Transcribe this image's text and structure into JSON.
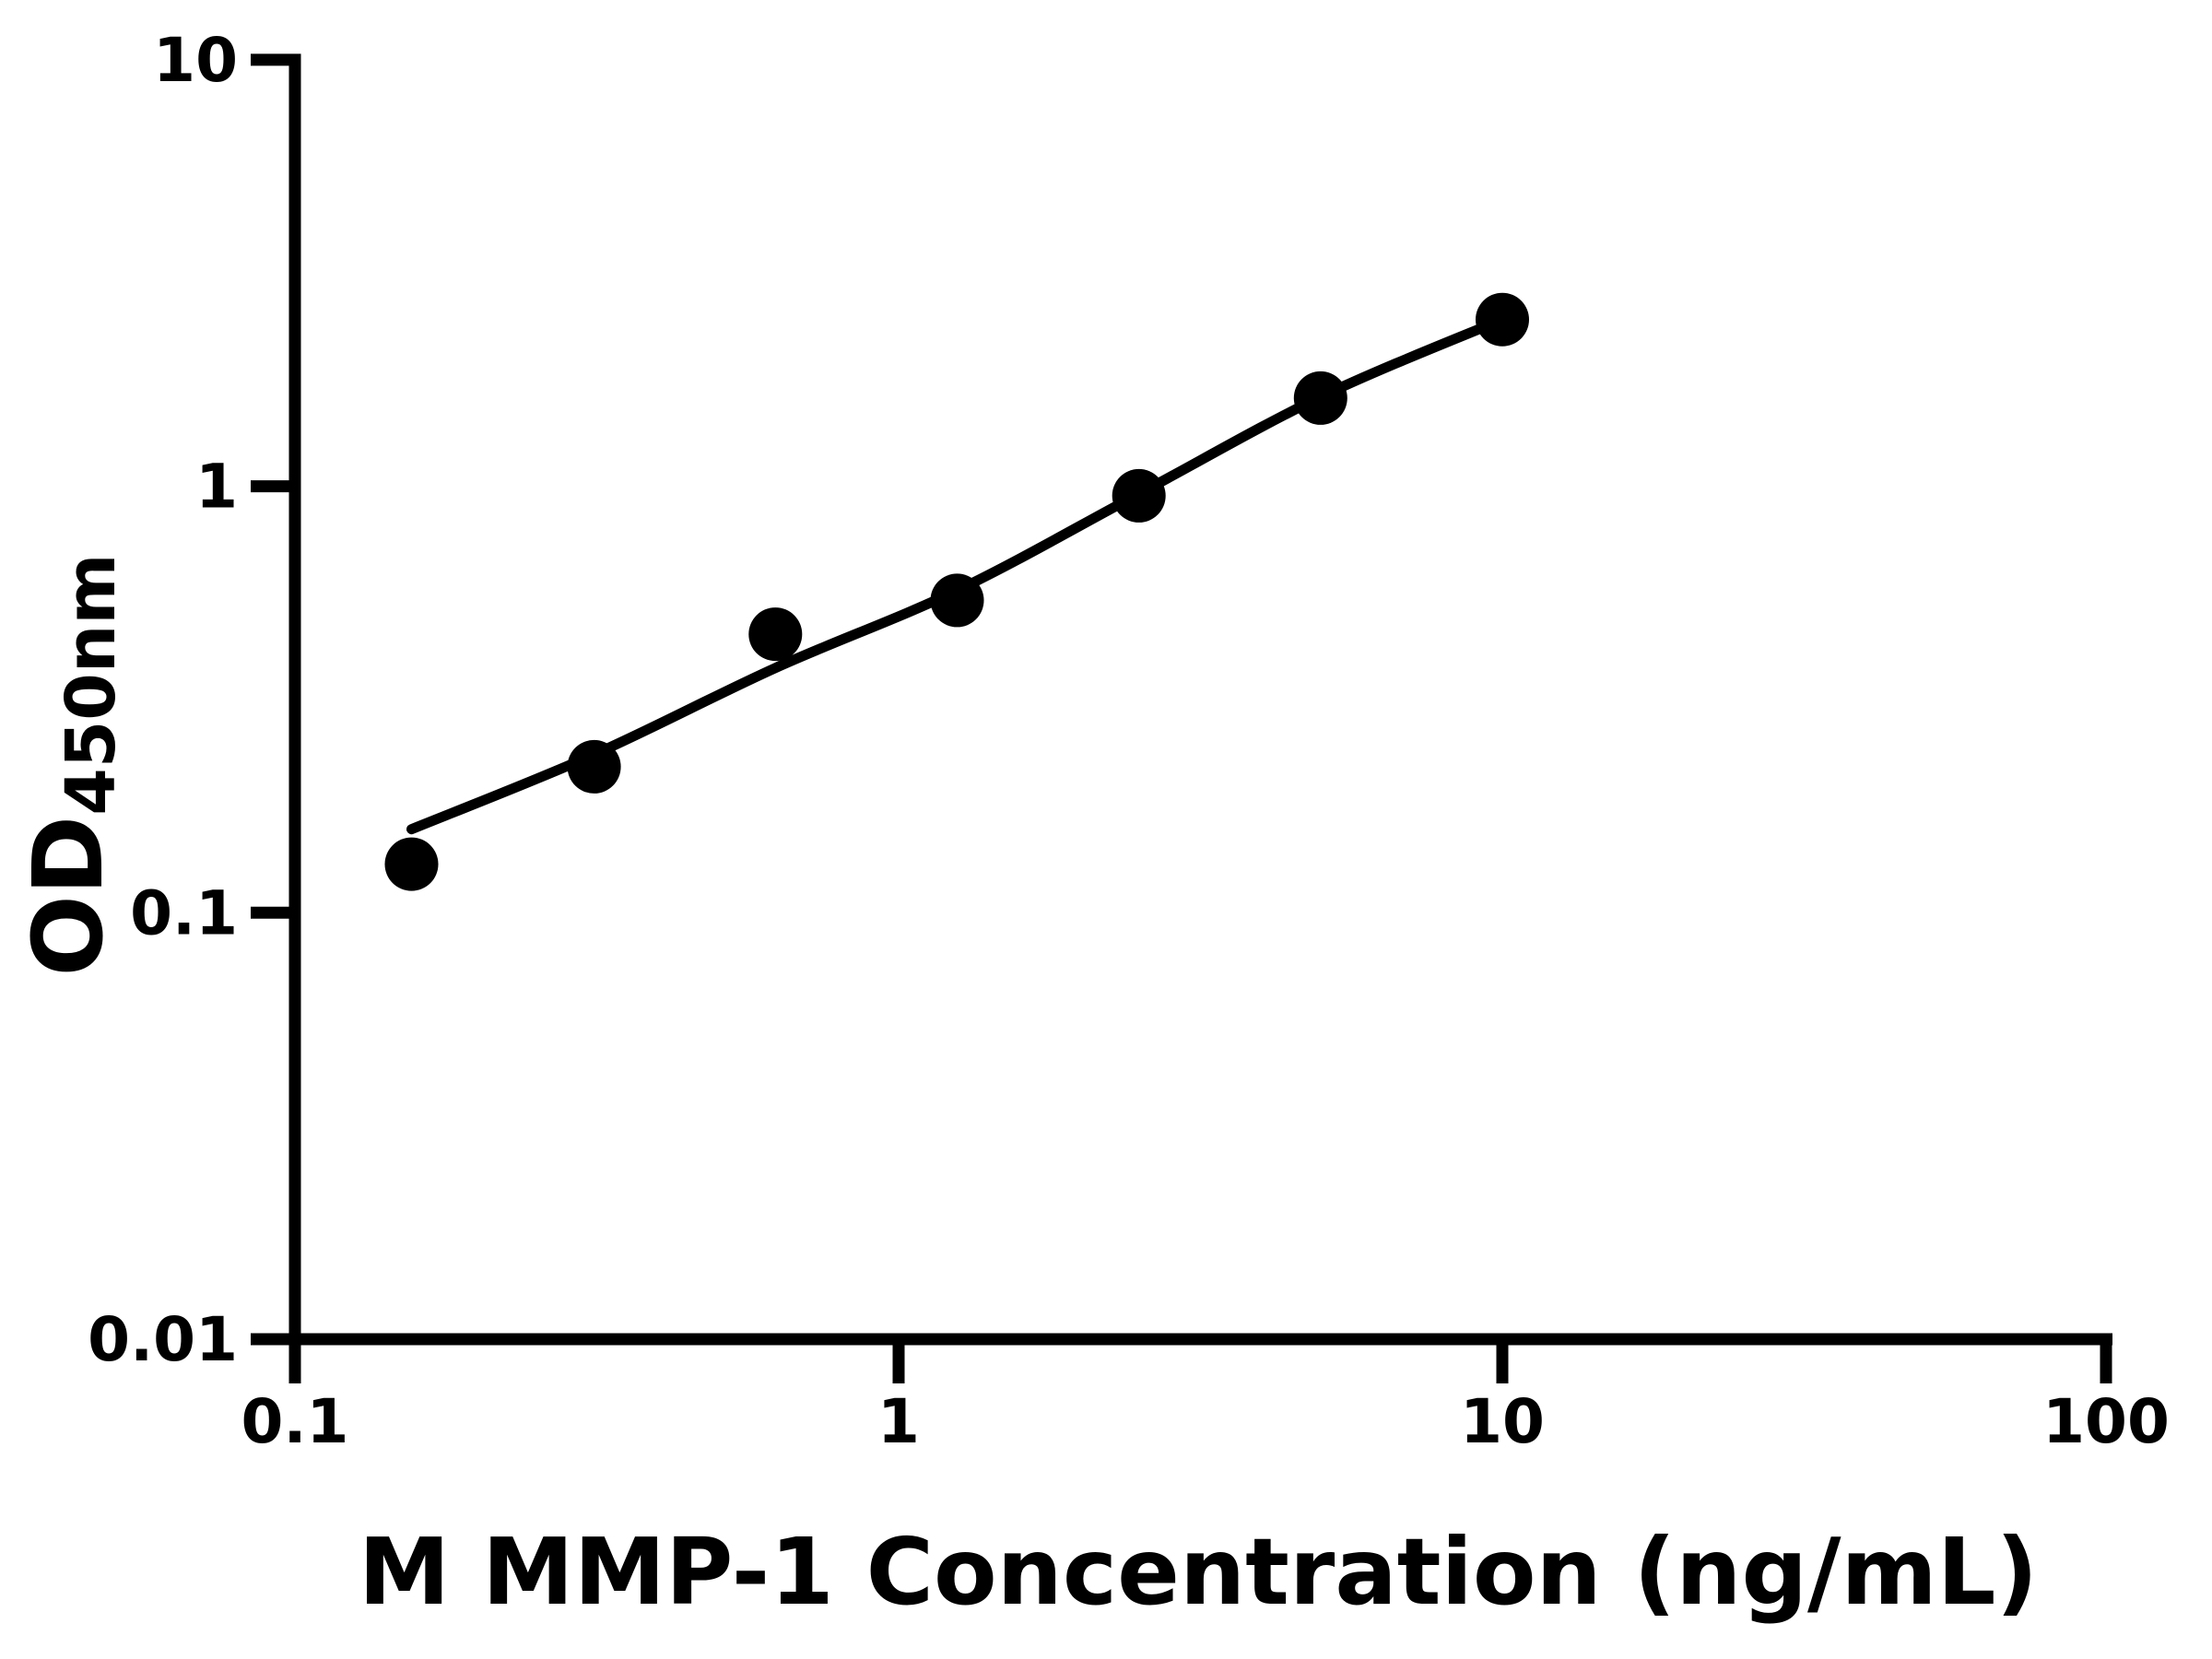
{
  "figure": {
    "background_color": "#ffffff",
    "foreground_color": "#000000"
  },
  "chart_data": {
    "type": "scatter",
    "title": "",
    "xlabel": "M MMP-1 Concentration (ng/mL)",
    "ylabel": "OD450nm",
    "ylabel_parts": {
      "main": "OD",
      "sub": "450nm"
    },
    "x_scale": "log",
    "y_scale": "log",
    "xlim": [
      0.1,
      100
    ],
    "ylim": [
      0.01,
      10
    ],
    "grid": false,
    "legend": "none",
    "x_ticks": [
      {
        "value": 0.1,
        "label": "0.1"
      },
      {
        "value": 1,
        "label": "1"
      },
      {
        "value": 10,
        "label": "10"
      },
      {
        "value": 100,
        "label": "100"
      }
    ],
    "y_ticks": [
      {
        "value": 10,
        "label": "10"
      },
      {
        "value": 1,
        "label": "1"
      },
      {
        "value": 0.1,
        "label": "0.1"
      },
      {
        "value": 0.01,
        "label": "0.01"
      }
    ],
    "series": [
      {
        "name": "standard-points",
        "marker": "filled-circle",
        "marker_radius_px": 29,
        "color": "#000000",
        "points": [
          {
            "x": 0.156,
            "y": 0.13
          },
          {
            "x": 0.313,
            "y": 0.22
          },
          {
            "x": 0.625,
            "y": 0.45
          },
          {
            "x": 1.25,
            "y": 0.54
          },
          {
            "x": 2.5,
            "y": 0.95
          },
          {
            "x": 5,
            "y": 1.61
          },
          {
            "x": 10,
            "y": 2.46
          }
        ]
      }
    ],
    "fit_curve": {
      "name": "four-parameter-fit",
      "color": "#000000",
      "stroke_px": 11,
      "anchors": [
        {
          "x": 0.156,
          "y": 0.157
        },
        {
          "x": 0.313,
          "y": 0.235
        },
        {
          "x": 0.625,
          "y": 0.375
        },
        {
          "x": 1.25,
          "y": 0.57
        },
        {
          "x": 2.5,
          "y": 0.96
        },
        {
          "x": 5,
          "y": 1.62
        },
        {
          "x": 10,
          "y": 2.46
        }
      ]
    }
  }
}
